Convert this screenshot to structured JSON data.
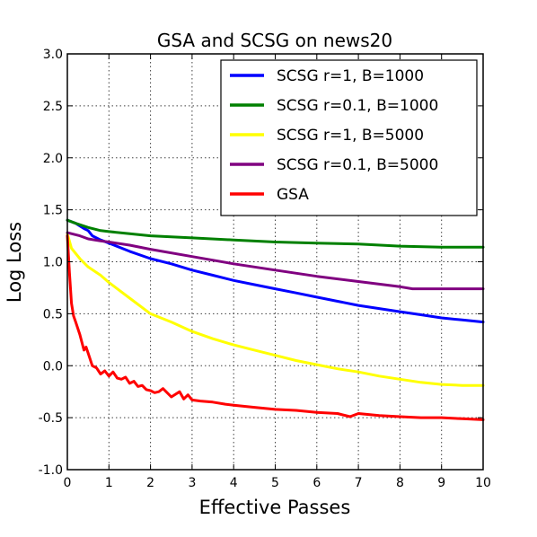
{
  "chart_data": {
    "type": "line",
    "title": "GSA and SCSG on news20",
    "xlabel": "Effective Passes",
    "ylabel": "Log Loss",
    "xlim": [
      0,
      10
    ],
    "ylim": [
      -1.0,
      3.0
    ],
    "xticks": [
      "0",
      "1",
      "2",
      "3",
      "4",
      "5",
      "6",
      "7",
      "8",
      "9",
      "10"
    ],
    "yticks": [
      "-1.0",
      "-0.5",
      "0.0",
      "0.5",
      "1.0",
      "1.5",
      "2.0",
      "2.5",
      "3.0"
    ],
    "grid": true,
    "legend_position": "top-right",
    "series": [
      {
        "name": "SCSG r=1, B=1000",
        "color": "#0000ff",
        "x": [
          0,
          0.2,
          0.4,
          0.5,
          0.6,
          0.8,
          1,
          1.5,
          2,
          2.5,
          3,
          3.5,
          4,
          4.5,
          5,
          5.5,
          6,
          6.5,
          7,
          7.5,
          8,
          8.5,
          9,
          9.5,
          10
        ],
        "y": [
          1.4,
          1.37,
          1.32,
          1.3,
          1.25,
          1.21,
          1.18,
          1.1,
          1.03,
          0.98,
          0.92,
          0.87,
          0.82,
          0.78,
          0.74,
          0.7,
          0.66,
          0.62,
          0.58,
          0.55,
          0.52,
          0.49,
          0.46,
          0.44,
          0.42
        ]
      },
      {
        "name": "SCSG r=0.1, B=1000",
        "color": "#008000",
        "x": [
          0,
          0.2,
          0.5,
          0.8,
          1,
          1.5,
          2,
          3,
          4,
          5,
          6,
          7,
          8,
          9,
          10
        ],
        "y": [
          1.4,
          1.37,
          1.33,
          1.3,
          1.29,
          1.27,
          1.25,
          1.23,
          1.21,
          1.19,
          1.18,
          1.17,
          1.15,
          1.14,
          1.14
        ]
      },
      {
        "name": "SCSG r=1, B=5000",
        "color": "#ffff00",
        "x": [
          0,
          0.1,
          0.3,
          0.5,
          0.8,
          1,
          1.5,
          2,
          2.5,
          3,
          3.5,
          4,
          4.5,
          5,
          5.5,
          6,
          6.5,
          7,
          7.5,
          8,
          8.5,
          9,
          9.5,
          10
        ],
        "y": [
          1.27,
          1.13,
          1.03,
          0.95,
          0.87,
          0.8,
          0.65,
          0.5,
          0.42,
          0.33,
          0.26,
          0.2,
          0.15,
          0.1,
          0.05,
          0.01,
          -0.03,
          -0.06,
          -0.1,
          -0.13,
          -0.16,
          -0.18,
          -0.19,
          -0.19
        ]
      },
      {
        "name": "SCSG r=0.1, B=5000",
        "color": "#800080",
        "x": [
          0,
          0.3,
          0.5,
          0.8,
          1,
          1.5,
          2,
          3,
          4,
          5,
          6,
          7,
          8,
          8.3,
          9,
          10
        ],
        "y": [
          1.28,
          1.25,
          1.22,
          1.2,
          1.19,
          1.16,
          1.12,
          1.05,
          0.98,
          0.92,
          0.86,
          0.81,
          0.76,
          0.74,
          0.74,
          0.74
        ]
      },
      {
        "name": "GSA",
        "color": "#ff0000",
        "x": [
          0,
          0.05,
          0.1,
          0.15,
          0.2,
          0.3,
          0.4,
          0.45,
          0.5,
          0.6,
          0.7,
          0.8,
          0.9,
          1,
          1.1,
          1.2,
          1.3,
          1.4,
          1.5,
          1.6,
          1.7,
          1.8,
          1.9,
          2,
          2.1,
          2.2,
          2.3,
          2.5,
          2.7,
          2.8,
          2.9,
          3,
          3.2,
          3.5,
          3.8,
          4,
          4.5,
          5,
          5.5,
          6,
          6.5,
          6.8,
          7,
          7.5,
          8,
          8.5,
          9,
          9.5,
          10
        ],
        "y": [
          1.25,
          0.9,
          0.6,
          0.48,
          0.42,
          0.3,
          0.15,
          0.18,
          0.12,
          0.0,
          -0.02,
          -0.08,
          -0.05,
          -0.1,
          -0.06,
          -0.12,
          -0.13,
          -0.11,
          -0.17,
          -0.15,
          -0.2,
          -0.19,
          -0.23,
          -0.24,
          -0.26,
          -0.25,
          -0.22,
          -0.3,
          -0.25,
          -0.32,
          -0.28,
          -0.33,
          -0.34,
          -0.35,
          -0.37,
          -0.38,
          -0.4,
          -0.42,
          -0.43,
          -0.45,
          -0.46,
          -0.49,
          -0.46,
          -0.48,
          -0.49,
          -0.5,
          -0.5,
          -0.51,
          -0.52
        ]
      }
    ]
  }
}
